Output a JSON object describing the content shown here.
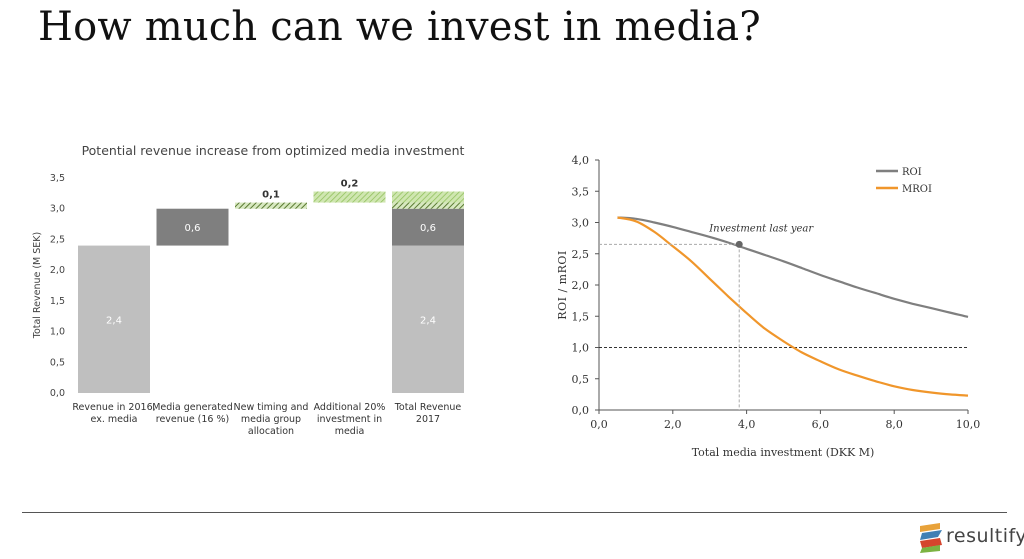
{
  "page": {
    "title": "How much can we invest in media?"
  },
  "brand": {
    "name": "resultify",
    "colors": [
      "#e8a23a",
      "#3f7fb4",
      "#d5452d",
      "#7cb342"
    ]
  },
  "colors": {
    "base": "#bfbfbf",
    "media": "#7f7f7f",
    "green_hatch": "#b5d68a",
    "roi": "#7f7f7f",
    "mroi": "#f0962b"
  },
  "chart_data": [
    {
      "type": "bar",
      "subtype": "waterfall",
      "title": "Potential revenue increase from optimized media investment",
      "ylabel": "Total Revenue (M SEK)",
      "xlabel": "",
      "ylim": [
        0,
        3.5
      ],
      "yticks": [
        "0,0",
        "0,5",
        "1,0",
        "1,5",
        "2,0",
        "2,5",
        "3,0",
        "3,5"
      ],
      "grid": false,
      "categories": [
        "Revenue in 2016, ex. media",
        "Media generated revenue (16 %)",
        "New timing and media group allocation",
        "Additional 20% investment in media",
        "Total Revenue 2017"
      ],
      "category_lines": [
        [
          "Revenue in 2016,",
          "ex. media"
        ],
        [
          "Media generated",
          "revenue (16 %)"
        ],
        [
          "New timing and",
          "media group",
          "allocation"
        ],
        [
          "Additional 20%",
          "investment in",
          "media"
        ],
        [
          "Total Revenue",
          "2017"
        ]
      ],
      "bars": [
        {
          "category": 0,
          "segments": [
            {
              "start": 0,
              "end": 2.4,
              "style": "base",
              "label": "2,4"
            }
          ]
        },
        {
          "category": 1,
          "segments": [
            {
              "start": 2.4,
              "end": 3.0,
              "style": "media",
              "label": "0,6"
            }
          ]
        },
        {
          "category": 2,
          "segments": [
            {
              "start": 3.0,
              "end": 3.1,
              "style": "hatch_dark",
              "label": "0,1",
              "label_position": "above"
            }
          ]
        },
        {
          "category": 3,
          "segments": [
            {
              "start": 3.1,
              "end": 3.28,
              "style": "hatch_light",
              "label": "0,2",
              "label_position": "above"
            }
          ]
        },
        {
          "category": 4,
          "segments": [
            {
              "start": 0,
              "end": 2.4,
              "style": "base",
              "label": "2,4"
            },
            {
              "start": 2.4,
              "end": 3.0,
              "style": "media",
              "label": "0,6"
            },
            {
              "start": 3.0,
              "end": 3.1,
              "style": "hatch_dark",
              "label": ""
            },
            {
              "start": 3.1,
              "end": 3.28,
              "style": "hatch_light",
              "label": ""
            }
          ]
        }
      ]
    },
    {
      "type": "line",
      "title": "",
      "xlabel": "Total media investment (DKK M)",
      "ylabel": "ROI / mROI",
      "xlim": [
        0,
        10
      ],
      "ylim": [
        0,
        4
      ],
      "xticks": [
        0,
        2,
        4,
        6,
        8,
        10
      ],
      "xtick_labels": [
        "0,0",
        "2,0",
        "4,0",
        "6,0",
        "8,0",
        "10,0"
      ],
      "yticks": [
        0,
        0.5,
        1,
        1.5,
        2,
        2.5,
        3,
        3.5,
        4
      ],
      "ytick_labels": [
        "0,0",
        "0,5",
        "1,0",
        "1,5",
        "2,0",
        "2,5",
        "3,0",
        "3,5",
        "4,0"
      ],
      "legend_position": "top-right",
      "series": [
        {
          "name": "ROI",
          "color": "#7f7f7f",
          "x": [
            0.5,
            1,
            1.5,
            2,
            2.5,
            3,
            3.5,
            4,
            4.5,
            5,
            5.5,
            6,
            6.5,
            7,
            7.5,
            8,
            8.5,
            9,
            9.5,
            10
          ],
          "y": [
            3.08,
            3.06,
            3.0,
            2.93,
            2.85,
            2.77,
            2.68,
            2.58,
            2.48,
            2.38,
            2.27,
            2.16,
            2.06,
            1.96,
            1.87,
            1.78,
            1.7,
            1.63,
            1.56,
            1.49
          ]
        },
        {
          "name": "MROI",
          "color": "#f0962b",
          "x": [
            0.5,
            1,
            1.5,
            2,
            2.5,
            3,
            3.5,
            4,
            4.5,
            5,
            5.5,
            6,
            6.5,
            7,
            7.5,
            8,
            8.5,
            9,
            9.5,
            10
          ],
          "y": [
            3.08,
            3.02,
            2.85,
            2.62,
            2.38,
            2.1,
            1.82,
            1.55,
            1.3,
            1.1,
            0.92,
            0.78,
            0.65,
            0.55,
            0.46,
            0.38,
            0.32,
            0.28,
            0.25,
            0.23
          ]
        }
      ],
      "reference_lines": [
        {
          "axis": "y",
          "value": 1.0,
          "style": "dashed",
          "color": "#333333"
        }
      ],
      "annotation": {
        "label": "Investment last year",
        "x": 3.8,
        "y": 2.65
      }
    }
  ]
}
